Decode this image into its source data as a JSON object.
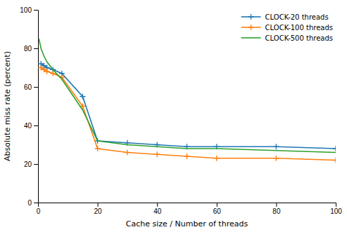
{
  "chart_data": {
    "type": "line",
    "xlabel": "Cache size / Number of threads",
    "ylabel": "Absolute miss rate (percent)",
    "xlim": [
      0,
      100
    ],
    "ylim": [
      0,
      100
    ],
    "xticks": [
      0,
      20,
      40,
      60,
      80,
      100
    ],
    "yticks": [
      0,
      20,
      40,
      60,
      80,
      100
    ],
    "grid": false,
    "legend": "upper right",
    "series": [
      {
        "name": "CLOCK-20 threads",
        "marker": "plus",
        "x": [
          1,
          2,
          3,
          5,
          8,
          15,
          20,
          30,
          40,
          50,
          60,
          80,
          100
        ],
        "values": [
          72,
          71,
          70,
          69,
          67,
          55,
          32,
          31,
          30,
          29,
          29,
          29,
          28
        ]
      },
      {
        "name": "CLOCK-100 threads",
        "marker": "plus",
        "x": [
          1,
          2,
          3,
          5,
          8,
          15,
          20,
          30,
          40,
          50,
          60,
          80,
          100
        ],
        "values": [
          70,
          69,
          68,
          67,
          65,
          50,
          28,
          26,
          25,
          24,
          23,
          23,
          22
        ]
      },
      {
        "name": "CLOCK-500 threads",
        "x": [
          0.3,
          1,
          2,
          3,
          5,
          8,
          15,
          20,
          30,
          40,
          50,
          60,
          80,
          100
        ],
        "values": [
          85,
          80,
          76,
          73,
          69,
          64,
          48,
          32,
          30,
          29,
          28,
          28,
          27,
          26
        ]
      }
    ]
  }
}
